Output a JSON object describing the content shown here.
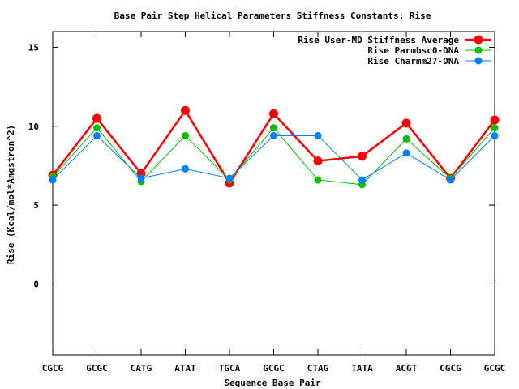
{
  "chart_data": {
    "type": "line",
    "title": "Base Pair Step Helical Parameters Stiffness Constants: Rise",
    "xlabel": "Sequence Base Pair",
    "ylabel": "Rise (Kcal/mol*Angstron^2)",
    "categories": [
      "CGCG",
      "GCGC",
      "CATG",
      "ATAT",
      "TGCA",
      "GCGC",
      "CTAG",
      "TATA",
      "ACGT",
      "CGCG",
      "GCGC"
    ],
    "ylim": [
      -4.5,
      16
    ],
    "yticks": [
      0,
      5,
      10,
      15
    ],
    "grid": false,
    "legend_position": "top-right",
    "series": [
      {
        "name": "Rise User-MD Stiffness Average",
        "color": "#ff0000",
        "values": [
          6.9,
          10.5,
          7.0,
          11.0,
          6.4,
          10.8,
          7.8,
          8.1,
          10.2,
          6.7,
          10.4
        ]
      },
      {
        "name": "Rise Parmbsc0-DNA",
        "color": "#00c000",
        "values": [
          6.8,
          9.9,
          6.5,
          9.4,
          6.6,
          9.9,
          6.6,
          6.3,
          9.2,
          6.7,
          9.9
        ]
      },
      {
        "name": "Rise Charmm27-DNA",
        "color": "#0080ff",
        "values": [
          6.6,
          9.4,
          6.7,
          7.3,
          6.7,
          9.4,
          9.4,
          6.6,
          8.3,
          6.6,
          9.4
        ]
      }
    ]
  }
}
